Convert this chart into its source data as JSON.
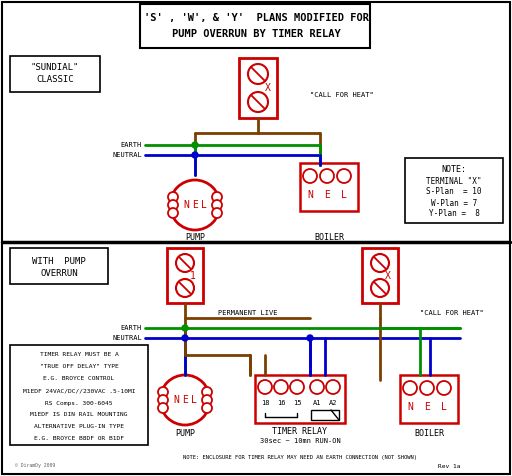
{
  "title_line1": "'S' , 'W', & 'Y'  PLANS MODIFIED FOR",
  "title_line2": "PUMP OVERRUN BY TIMER RELAY",
  "bg_color": "#ffffff",
  "red": "#cc0000",
  "green": "#009000",
  "blue": "#0000cc",
  "brown": "#7B4000",
  "black": "#000000",
  "gray": "#666666",
  "note_lines": [
    "TIMER RELAY MUST BE A",
    "\"TRUE OFF DELAY\" TYPE",
    "E.G. BROYCE CONTROL",
    "M1EDF 24VAC/DC//230VAC .5-10MI",
    "RS Comps. 300-6045",
    "M1EDF IS DIN RAIL MOUNTING",
    "ALTERNATIVE PLUG-IN TYPE",
    "E.G. BROYCE B8DF OR B1DF"
  ]
}
